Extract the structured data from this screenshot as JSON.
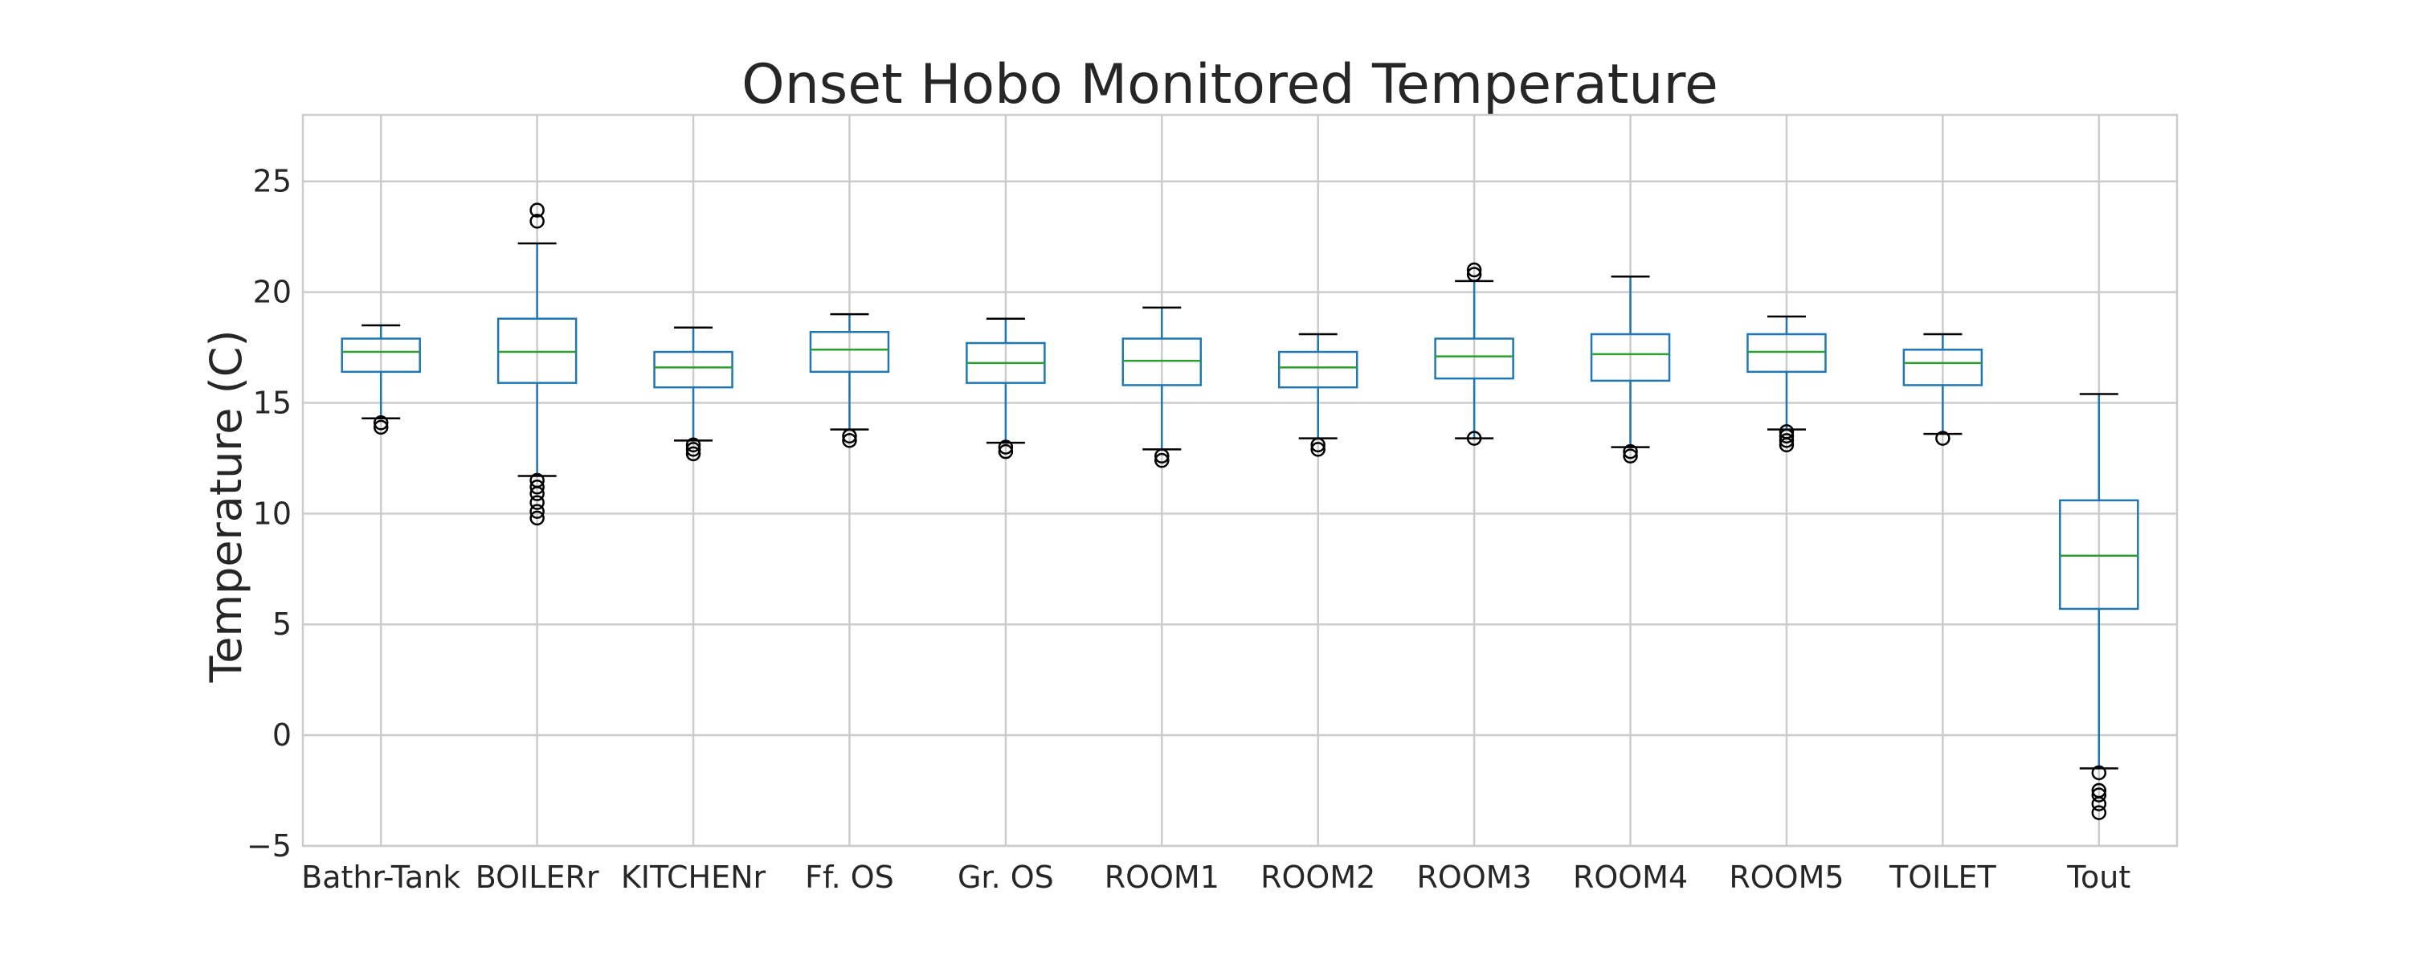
{
  "chart_data": {
    "type": "boxplot",
    "title": "Onset Hobo Monitored Temperature",
    "xlabel": "",
    "ylabel": "Temperature (C)",
    "ylim": [
      -5,
      28
    ],
    "yticks": [
      -5,
      0,
      5,
      10,
      15,
      20,
      25
    ],
    "grid": true,
    "legend": "none",
    "colors": {
      "box": "#1f77b4",
      "median": "#2ca02c",
      "whisker_cap": "#000000",
      "flier": "#000000",
      "grid": "#cccccc",
      "frame": "#cccccc"
    },
    "categories": [
      "Bathr-Tank",
      "BOILERr",
      "KITCHENr",
      "Ff. OS",
      "Gr. OS",
      "ROOM1",
      "ROOM2",
      "ROOM3",
      "ROOM4",
      "ROOM5",
      "TOILET",
      "Tout"
    ],
    "boxes": [
      {
        "whislo": 14.3,
        "q1": 16.4,
        "med": 17.3,
        "q3": 17.9,
        "whishi": 18.5,
        "fliers": [
          14.1,
          13.9
        ]
      },
      {
        "whislo": 11.7,
        "q1": 15.9,
        "med": 17.3,
        "q3": 18.8,
        "whishi": 22.2,
        "fliers": [
          23.7,
          23.2,
          11.5,
          11.2,
          10.9,
          10.5,
          10.1,
          9.8
        ]
      },
      {
        "whislo": 13.3,
        "q1": 15.7,
        "med": 16.6,
        "q3": 17.3,
        "whishi": 18.4,
        "fliers": [
          13.1,
          12.9,
          12.7
        ]
      },
      {
        "whislo": 13.8,
        "q1": 16.4,
        "med": 17.4,
        "q3": 18.2,
        "whishi": 19.0,
        "fliers": [
          13.5,
          13.3
        ]
      },
      {
        "whislo": 13.2,
        "q1": 15.9,
        "med": 16.8,
        "q3": 17.7,
        "whishi": 18.8,
        "fliers": [
          13.0,
          12.8
        ]
      },
      {
        "whislo": 12.9,
        "q1": 15.8,
        "med": 16.9,
        "q3": 17.9,
        "whishi": 19.3,
        "fliers": [
          12.6,
          12.4
        ]
      },
      {
        "whislo": 13.4,
        "q1": 15.7,
        "med": 16.6,
        "q3": 17.3,
        "whishi": 18.1,
        "fliers": [
          13.1,
          12.9
        ]
      },
      {
        "whislo": 13.4,
        "q1": 16.1,
        "med": 17.1,
        "q3": 17.9,
        "whishi": 20.5,
        "fliers": [
          21.0,
          20.8,
          13.4
        ]
      },
      {
        "whislo": 13.0,
        "q1": 16.0,
        "med": 17.2,
        "q3": 18.1,
        "whishi": 20.7,
        "fliers": [
          12.8,
          12.6
        ]
      },
      {
        "whislo": 13.8,
        "q1": 16.4,
        "med": 17.3,
        "q3": 18.1,
        "whishi": 18.9,
        "fliers": [
          13.7,
          13.5,
          13.3,
          13.1
        ]
      },
      {
        "whislo": 13.6,
        "q1": 15.8,
        "med": 16.8,
        "q3": 17.4,
        "whishi": 18.1,
        "fliers": [
          13.4
        ]
      },
      {
        "whislo": -1.5,
        "q1": 5.7,
        "med": 8.1,
        "q3": 10.6,
        "whishi": 15.4,
        "fliers": [
          -1.7,
          -2.5,
          -2.7,
          -3.1,
          -3.5
        ]
      }
    ]
  }
}
